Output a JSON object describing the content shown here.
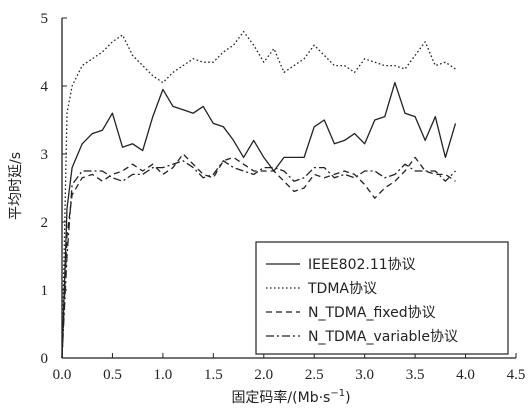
{
  "chart_data": {
    "type": "line",
    "xlabel": "固定码率/(Mb·s",
    "xlabel_sup": "−1",
    "xlabel_close": ")",
    "ylabel": "平均时延/s",
    "xlim": [
      0,
      4.5
    ],
    "ylim": [
      0,
      5
    ],
    "xticks": [
      "0.0",
      "0.5",
      "1.0",
      "1.5",
      "2.0",
      "2.5",
      "3.0",
      "3.5",
      "4.0",
      "4.5"
    ],
    "yticks": [
      "0",
      "1",
      "2",
      "3",
      "4",
      "5"
    ],
    "legend_position": "bottom-right",
    "series": [
      {
        "name": "IEEE802.11协议",
        "dash": "solid",
        "points": [
          [
            0,
            0
          ],
          [
            0.05,
            2.2
          ],
          [
            0.1,
            2.8
          ],
          [
            0.2,
            3.15
          ],
          [
            0.3,
            3.3
          ],
          [
            0.4,
            3.35
          ],
          [
            0.5,
            3.6
          ],
          [
            0.6,
            3.1
          ],
          [
            0.7,
            3.15
          ],
          [
            0.8,
            3.05
          ],
          [
            0.9,
            3.55
          ],
          [
            1.0,
            3.95
          ],
          [
            1.1,
            3.7
          ],
          [
            1.2,
            3.65
          ],
          [
            1.3,
            3.6
          ],
          [
            1.4,
            3.7
          ],
          [
            1.5,
            3.45
          ],
          [
            1.6,
            3.4
          ],
          [
            1.7,
            3.2
          ],
          [
            1.8,
            2.95
          ],
          [
            1.9,
            3.2
          ],
          [
            2.0,
            2.95
          ],
          [
            2.1,
            2.75
          ],
          [
            2.2,
            2.95
          ],
          [
            2.3,
            2.95
          ],
          [
            2.4,
            2.95
          ],
          [
            2.5,
            3.4
          ],
          [
            2.6,
            3.5
          ],
          [
            2.7,
            3.15
          ],
          [
            2.8,
            3.2
          ],
          [
            2.9,
            3.3
          ],
          [
            3.0,
            3.15
          ],
          [
            3.1,
            3.5
          ],
          [
            3.2,
            3.55
          ],
          [
            3.3,
            4.05
          ],
          [
            3.4,
            3.6
          ],
          [
            3.5,
            3.55
          ],
          [
            3.6,
            3.2
          ],
          [
            3.7,
            3.55
          ],
          [
            3.8,
            2.95
          ],
          [
            3.9,
            3.45
          ]
        ]
      },
      {
        "name": "TDMA协议",
        "dash": "dotted",
        "points": [
          [
            0,
            0
          ],
          [
            0.05,
            3.6
          ],
          [
            0.1,
            4.0
          ],
          [
            0.2,
            4.3
          ],
          [
            0.3,
            4.4
          ],
          [
            0.4,
            4.5
          ],
          [
            0.5,
            4.65
          ],
          [
            0.6,
            4.75
          ],
          [
            0.7,
            4.45
          ],
          [
            0.8,
            4.3
          ],
          [
            0.9,
            4.15
          ],
          [
            1.0,
            4.05
          ],
          [
            1.1,
            4.2
          ],
          [
            1.2,
            4.3
          ],
          [
            1.3,
            4.4
          ],
          [
            1.4,
            4.35
          ],
          [
            1.5,
            4.35
          ],
          [
            1.6,
            4.5
          ],
          [
            1.7,
            4.6
          ],
          [
            1.8,
            4.8
          ],
          [
            1.9,
            4.6
          ],
          [
            2.0,
            4.35
          ],
          [
            2.1,
            4.55
          ],
          [
            2.2,
            4.2
          ],
          [
            2.3,
            4.3
          ],
          [
            2.4,
            4.4
          ],
          [
            2.5,
            4.6
          ],
          [
            2.6,
            4.45
          ],
          [
            2.7,
            4.3
          ],
          [
            2.8,
            4.3
          ],
          [
            2.9,
            4.2
          ],
          [
            3.0,
            4.4
          ],
          [
            3.1,
            4.35
          ],
          [
            3.2,
            4.3
          ],
          [
            3.3,
            4.3
          ],
          [
            3.4,
            4.25
          ],
          [
            3.5,
            4.45
          ],
          [
            3.6,
            4.65
          ],
          [
            3.7,
            4.3
          ],
          [
            3.8,
            4.35
          ],
          [
            3.9,
            4.25
          ]
        ]
      },
      {
        "name": "N_TDMA_fixed协议",
        "dash": "dashed",
        "points": [
          [
            0,
            0
          ],
          [
            0.05,
            1.8
          ],
          [
            0.1,
            2.4
          ],
          [
            0.2,
            2.65
          ],
          [
            0.3,
            2.7
          ],
          [
            0.4,
            2.6
          ],
          [
            0.5,
            2.7
          ],
          [
            0.6,
            2.75
          ],
          [
            0.7,
            2.85
          ],
          [
            0.8,
            2.75
          ],
          [
            0.9,
            2.85
          ],
          [
            1.0,
            2.7
          ],
          [
            1.1,
            2.8
          ],
          [
            1.2,
            3.0
          ],
          [
            1.3,
            2.85
          ],
          [
            1.4,
            2.7
          ],
          [
            1.5,
            2.65
          ],
          [
            1.6,
            2.9
          ],
          [
            1.7,
            2.95
          ],
          [
            1.8,
            2.85
          ],
          [
            1.9,
            2.75
          ],
          [
            2.0,
            2.75
          ],
          [
            2.1,
            2.75
          ],
          [
            2.2,
            2.6
          ],
          [
            2.3,
            2.45
          ],
          [
            2.4,
            2.5
          ],
          [
            2.5,
            2.7
          ],
          [
            2.6,
            2.65
          ],
          [
            2.7,
            2.7
          ],
          [
            2.8,
            2.75
          ],
          [
            2.9,
            2.7
          ],
          [
            3.0,
            2.55
          ],
          [
            3.1,
            2.35
          ],
          [
            3.2,
            2.5
          ],
          [
            3.3,
            2.6
          ],
          [
            3.4,
            2.75
          ],
          [
            3.5,
            2.95
          ],
          [
            3.6,
            2.75
          ],
          [
            3.7,
            2.7
          ],
          [
            3.8,
            2.7
          ],
          [
            3.9,
            2.6
          ]
        ]
      },
      {
        "name": "N_TDMA_variable协议",
        "dash": "dashdot",
        "points": [
          [
            0,
            0
          ],
          [
            0.05,
            1.5
          ],
          [
            0.1,
            2.55
          ],
          [
            0.2,
            2.75
          ],
          [
            0.3,
            2.75
          ],
          [
            0.4,
            2.75
          ],
          [
            0.5,
            2.65
          ],
          [
            0.6,
            2.6
          ],
          [
            0.7,
            2.7
          ],
          [
            0.8,
            2.7
          ],
          [
            0.9,
            2.8
          ],
          [
            1.0,
            2.8
          ],
          [
            1.1,
            2.85
          ],
          [
            1.2,
            2.9
          ],
          [
            1.3,
            2.8
          ],
          [
            1.4,
            2.65
          ],
          [
            1.5,
            2.7
          ],
          [
            1.6,
            2.9
          ],
          [
            1.7,
            2.8
          ],
          [
            1.8,
            2.75
          ],
          [
            1.9,
            2.7
          ],
          [
            2.0,
            2.8
          ],
          [
            2.1,
            2.8
          ],
          [
            2.2,
            2.75
          ],
          [
            2.3,
            2.6
          ],
          [
            2.4,
            2.65
          ],
          [
            2.5,
            2.8
          ],
          [
            2.6,
            2.8
          ],
          [
            2.7,
            2.65
          ],
          [
            2.8,
            2.7
          ],
          [
            2.9,
            2.65
          ],
          [
            3.0,
            2.75
          ],
          [
            3.1,
            2.75
          ],
          [
            3.2,
            2.65
          ],
          [
            3.3,
            2.7
          ],
          [
            3.4,
            2.85
          ],
          [
            3.5,
            2.75
          ],
          [
            3.6,
            2.75
          ],
          [
            3.7,
            2.75
          ],
          [
            3.8,
            2.6
          ],
          [
            3.9,
            2.75
          ]
        ]
      }
    ]
  }
}
